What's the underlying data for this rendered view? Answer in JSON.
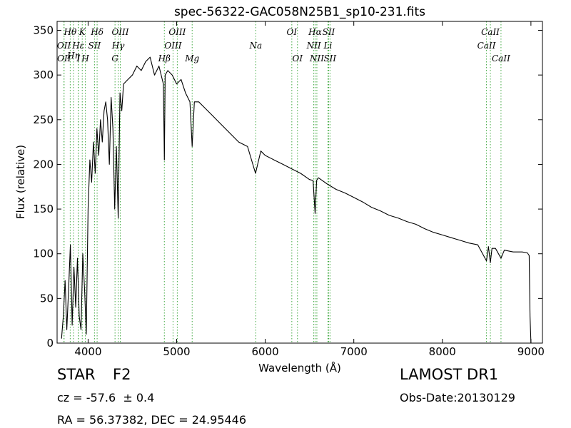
{
  "chart_data": {
    "type": "line",
    "title": "spec-56322-GAC058N25B1_sp10-231.fits",
    "xlabel": "Wavelength (Å)",
    "ylabel": "Flux (relative)",
    "xlim": [
      3650,
      9130
    ],
    "ylim": [
      0,
      360
    ],
    "xticks": [
      4000,
      5000,
      6000,
      7000,
      8000,
      9000
    ],
    "yticks": [
      0,
      50,
      100,
      150,
      200,
      250,
      300,
      350
    ],
    "grid": false,
    "series": [
      {
        "x": [
          3700,
          3720,
          3740,
          3760,
          3780,
          3800,
          3820,
          3840,
          3860,
          3880,
          3900,
          3920,
          3940,
          3960,
          3980,
          4000,
          4020,
          4040,
          4060,
          4080,
          4100,
          4120,
          4140,
          4160,
          4180,
          4200,
          4220,
          4240,
          4260,
          4280,
          4300,
          4320,
          4340,
          4360,
          4380,
          4400,
          4450,
          4500,
          4550,
          4600,
          4650,
          4700,
          4750,
          4800,
          4850,
          4861,
          4870,
          4900,
          4950,
          5000,
          5050,
          5100,
          5150,
          5175,
          5200,
          5250,
          5300,
          5400,
          5500,
          5600,
          5700,
          5800,
          5890,
          5950,
          6000,
          6100,
          6200,
          6300,
          6400,
          6500,
          6540,
          6563,
          6580,
          6600,
          6700,
          6800,
          6900,
          7000,
          7100,
          7200,
          7300,
          7400,
          7500,
          7600,
          7700,
          7800,
          7900,
          8000,
          8100,
          8200,
          8300,
          8400,
          8498,
          8520,
          8542,
          8560,
          8600,
          8662,
          8700,
          8800,
          8900,
          8960,
          8980,
          8990,
          9000
        ],
        "y": [
          5,
          30,
          70,
          15,
          60,
          110,
          20,
          85,
          40,
          95,
          30,
          15,
          100,
          60,
          10,
          150,
          205,
          180,
          225,
          190,
          240,
          210,
          250,
          225,
          260,
          270,
          250,
          200,
          275,
          240,
          150,
          220,
          140,
          280,
          260,
          290,
          295,
          300,
          310,
          305,
          315,
          320,
          300,
          310,
          290,
          205,
          300,
          305,
          300,
          290,
          295,
          280,
          270,
          220,
          270,
          270,
          265,
          255,
          245,
          235,
          225,
          220,
          190,
          215,
          210,
          205,
          200,
          195,
          190,
          183,
          182,
          145,
          182,
          185,
          178,
          172,
          168,
          163,
          158,
          152,
          148,
          143,
          140,
          136,
          133,
          128,
          124,
          121,
          118,
          115,
          112,
          110,
          92,
          108,
          90,
          106,
          106,
          95,
          104,
          102,
          102,
          101,
          98,
          30,
          0
        ]
      }
    ],
    "spectral_lines": [
      {
        "label": "Hθ",
        "x": 3798,
        "row": 1
      },
      {
        "label": "K",
        "x": 3934,
        "row": 1
      },
      {
        "label": "Hδ",
        "x": 4102,
        "row": 1
      },
      {
        "label": "OIII",
        "x": 4363,
        "row": 1
      },
      {
        "label": "OIII",
        "x": 5007,
        "row": 1
      },
      {
        "label": "OI",
        "x": 6300,
        "row": 1
      },
      {
        "label": "Hα",
        "x": 6563,
        "row": 1
      },
      {
        "label": "SII",
        "x": 6716,
        "row": 1
      },
      {
        "label": "CaII",
        "x": 8542,
        "row": 1
      },
      {
        "label": "OII",
        "x": 3727,
        "row": 2
      },
      {
        "label": "Hε",
        "x": 3889,
        "row": 2
      },
      {
        "label": "SII",
        "x": 4072,
        "row": 2
      },
      {
        "label": "Hγ",
        "x": 4340,
        "row": 2
      },
      {
        "label": "OIII",
        "x": 4959,
        "row": 2
      },
      {
        "label": "Na",
        "x": 5893,
        "row": 2
      },
      {
        "label": "NII",
        "x": 6548,
        "row": 2
      },
      {
        "label": "Li",
        "x": 6708,
        "row": 2
      },
      {
        "label": "CaII",
        "x": 8498,
        "row": 2
      },
      {
        "label": "Hη",
        "x": 3835,
        "row": 2.5
      },
      {
        "label": "OII",
        "x": 3729,
        "row": 3
      },
      {
        "label": "I",
        "x": 3890,
        "row": 3
      },
      {
        "label": "H",
        "x": 3969,
        "row": 3
      },
      {
        "label": "G",
        "x": 4304,
        "row": 3
      },
      {
        "label": "Hβ",
        "x": 4861,
        "row": 3
      },
      {
        "label": "Mg",
        "x": 5175,
        "row": 3
      },
      {
        "label": "OI",
        "x": 6364,
        "row": 3
      },
      {
        "label": "NII",
        "x": 6583,
        "row": 3
      },
      {
        "label": "SII",
        "x": 6731,
        "row": 3
      },
      {
        "label": "CaII",
        "x": 8662,
        "row": 3
      }
    ],
    "line_color": "#000000",
    "marker_color": "#44aa44"
  },
  "info": {
    "object_class": "STAR",
    "subclass": "F2",
    "survey": "LAMOST DR1",
    "redshift": "cz = -57.6  ± 0.4",
    "obs_date": "Obs-Date:20130129",
    "coords": "RA = 56.37382, DEC = 24.95446"
  }
}
